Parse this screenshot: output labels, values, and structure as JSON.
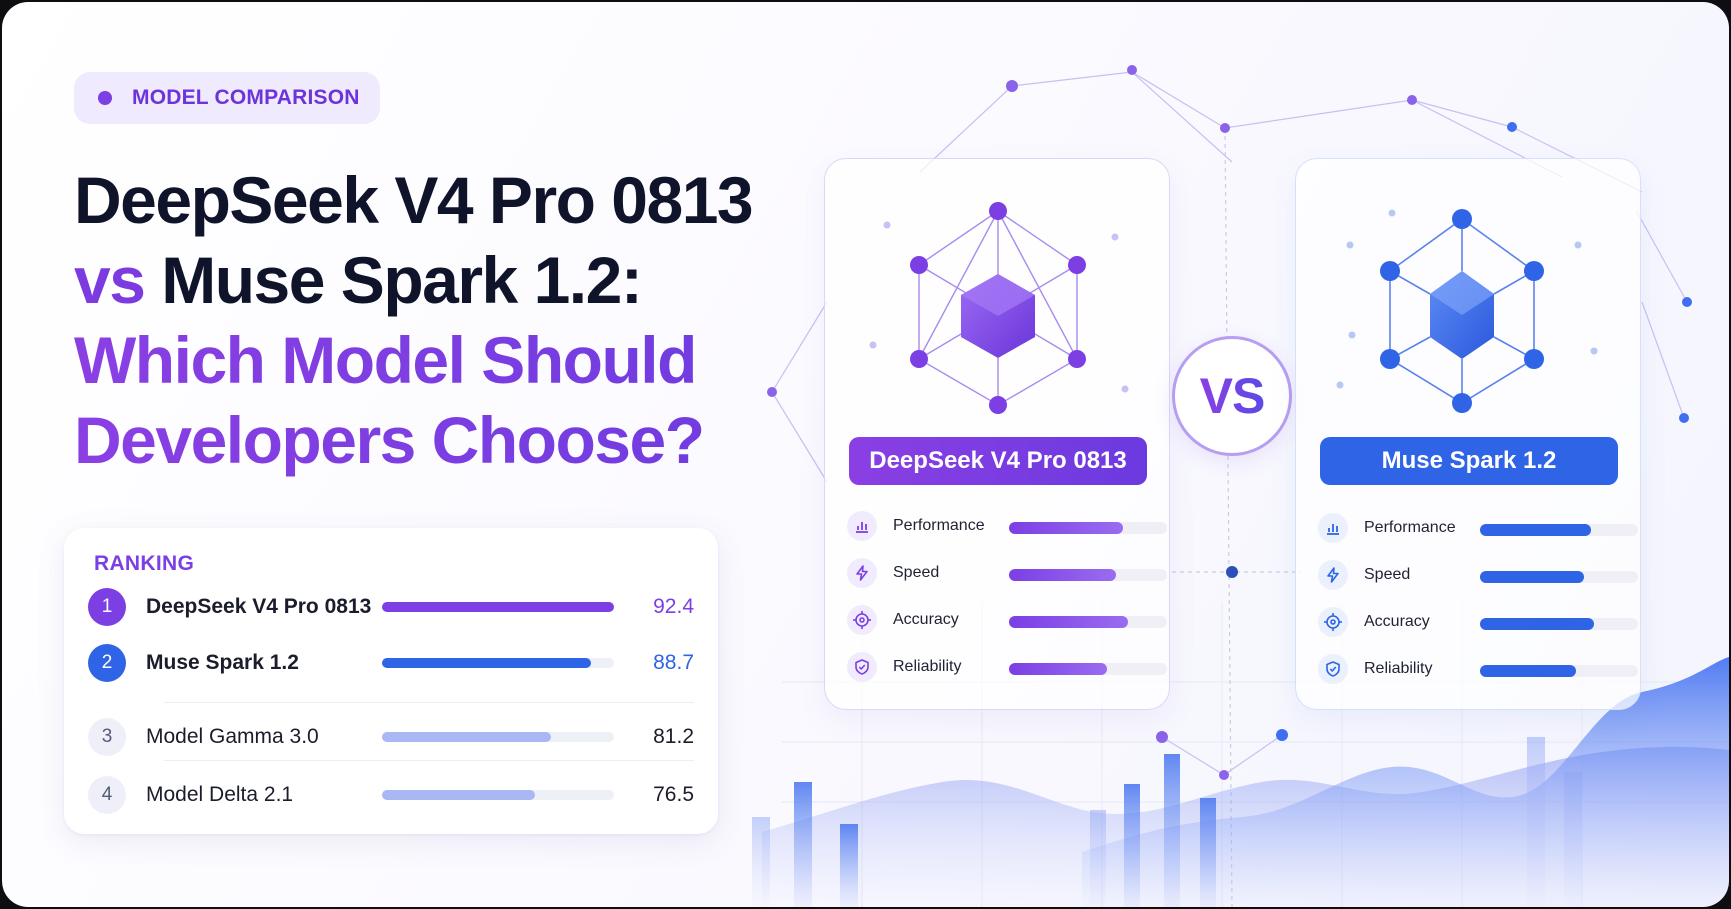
{
  "badge": {
    "label": "MODEL COMPARISON"
  },
  "headline": {
    "line1": "DeepSeek V4 Pro 0813",
    "line2_vs": "vs",
    "line2_rest": " Muse Spark 1.2:",
    "line3": "Which Model Should",
    "line4": "Developers Choose?"
  },
  "ranking": {
    "title": "RANKING",
    "rows": [
      {
        "rank": "1",
        "name": "DeepSeek V4 Pro 0813",
        "score": "92.4",
        "fill": 1.0
      },
      {
        "rank": "2",
        "name": "Muse Spark 1.2",
        "score": "88.7",
        "fill": 0.9
      },
      {
        "rank": "3",
        "name": "Model Gamma 3.0",
        "score": "81.2",
        "fill": 0.73
      },
      {
        "rank": "4",
        "name": "Model Delta 2.1",
        "score": "76.5",
        "fill": 0.66
      }
    ]
  },
  "vs_label": "VS",
  "models": [
    {
      "name": "DeepSeek V4 Pro 0813",
      "metrics": [
        {
          "label": "Performance",
          "icon": "bar-chart-icon",
          "level": 0.72
        },
        {
          "label": "Speed",
          "icon": "lightning-icon",
          "level": 0.68
        },
        {
          "label": "Accuracy",
          "icon": "target-icon",
          "level": 0.75
        },
        {
          "label": "Reliability",
          "icon": "shield-icon",
          "level": 0.62
        }
      ]
    },
    {
      "name": "Muse Spark 1.2",
      "metrics": [
        {
          "label": "Performance",
          "icon": "bar-chart-icon",
          "level": 0.7
        },
        {
          "label": "Speed",
          "icon": "lightning-icon",
          "level": 0.66
        },
        {
          "label": "Accuracy",
          "icon": "target-icon",
          "level": 0.72
        },
        {
          "label": "Reliability",
          "icon": "shield-icon",
          "level": 0.61
        }
      ]
    }
  ],
  "colors": {
    "purple": "#7b3fe4",
    "blue": "#2f64e6",
    "light_bar": "#a9b8f4",
    "dark_text": "#10142a"
  }
}
